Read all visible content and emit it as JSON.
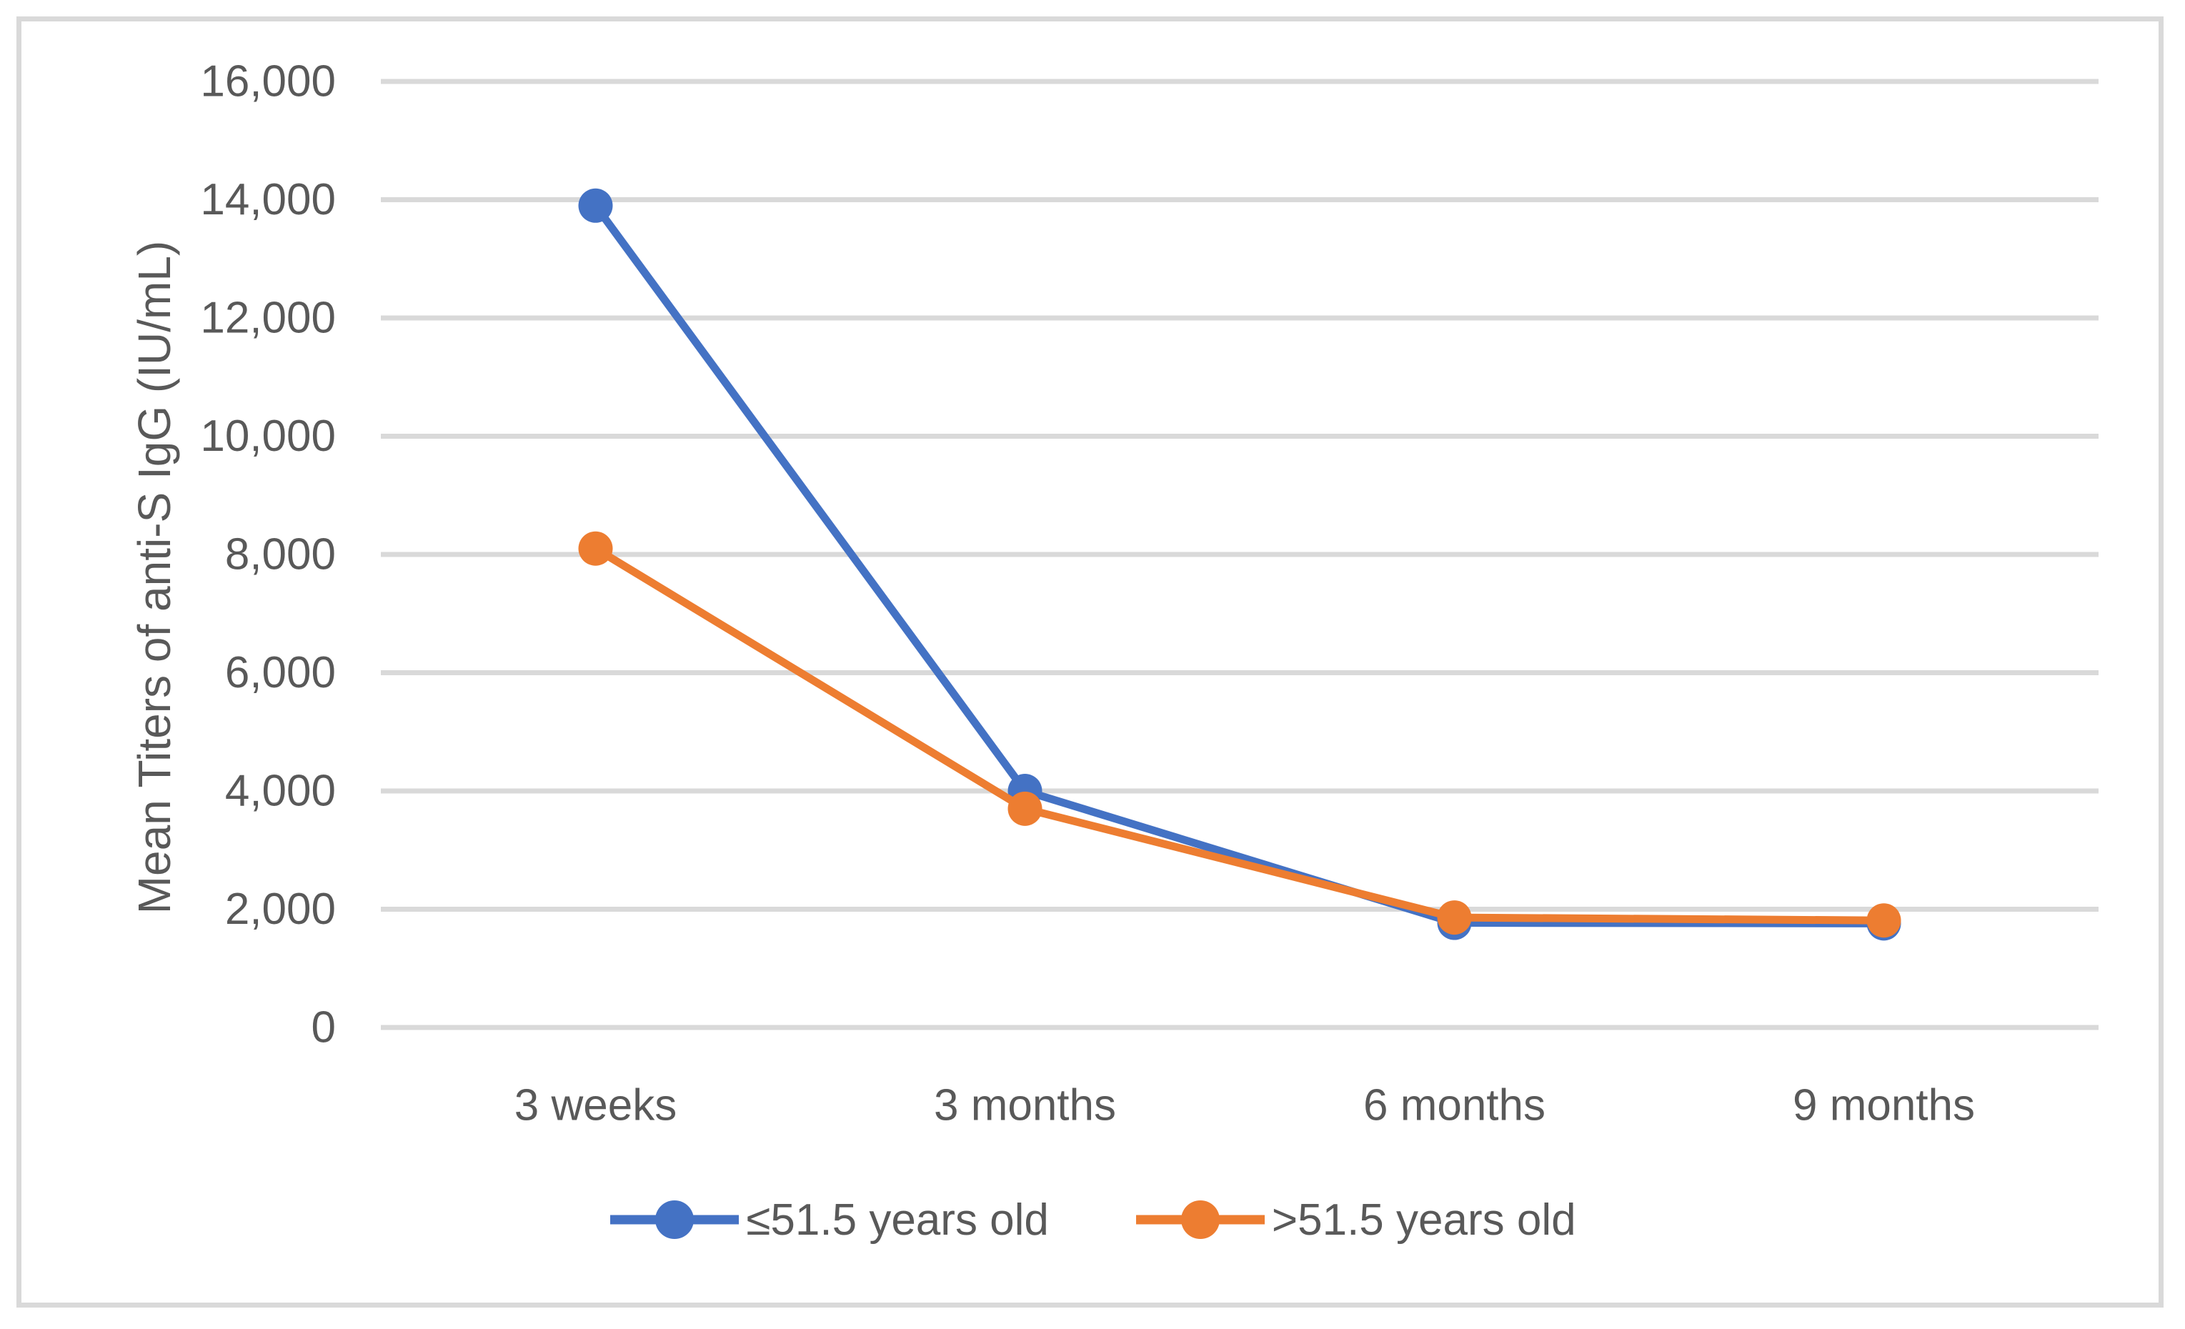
{
  "figure": {
    "background": "#ffffff",
    "border_color": "#d9d9d9"
  },
  "chart_data": {
    "type": "line",
    "title": "",
    "xlabel": "",
    "ylabel": "Mean Titers of anti-S IgG (IU/mL)",
    "categories": [
      "3 weeks",
      "3 months",
      "6 months",
      "9 months"
    ],
    "series": [
      {
        "name": "≤51.5 years old",
        "color": "#4472C4",
        "values": [
          13900,
          4000,
          1770,
          1760
        ]
      },
      {
        "name": ">51.5 years old",
        "color": "#ED7D31",
        "values": [
          8100,
          3700,
          1860,
          1810
        ]
      }
    ],
    "ylim": [
      0,
      16000
    ],
    "y_tick_step": 2000,
    "y_ticks": [
      {
        "value": 0,
        "label": "0"
      },
      {
        "value": 2000,
        "label": "2,000"
      },
      {
        "value": 4000,
        "label": "4,000"
      },
      {
        "value": 6000,
        "label": "6,000"
      },
      {
        "value": 8000,
        "label": "8,000"
      },
      {
        "value": 10000,
        "label": "10,000"
      },
      {
        "value": 12000,
        "label": "12,000"
      },
      {
        "value": 14000,
        "label": "14,000"
      },
      {
        "value": 16000,
        "label": "16,000"
      }
    ],
    "grid": "horizontal",
    "gridline_color": "#d9d9d9",
    "text_color": "#595959",
    "legend_position": "bottom",
    "marker": "circle"
  }
}
